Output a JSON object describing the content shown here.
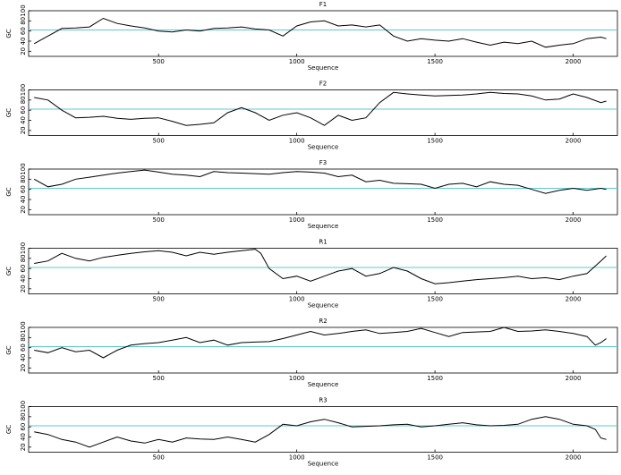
{
  "chart_data": [
    {
      "type": "line",
      "title": "F1",
      "x_label": "Sequence",
      "y_label": "GC",
      "color": "#000000",
      "reference": 62,
      "reference_color": "#5bc8d0",
      "x": [
        50,
        100,
        150,
        200,
        250,
        300,
        350,
        400,
        450,
        500,
        550,
        600,
        650,
        700,
        750,
        800,
        850,
        900,
        950,
        1000,
        1050,
        1100,
        1150,
        1200,
        1250,
        1300,
        1350,
        1400,
        1450,
        1500,
        1550,
        1600,
        1650,
        1700,
        1750,
        1800,
        1850,
        1900,
        1950,
        2000,
        2050,
        2100,
        2120
      ],
      "values": [
        35,
        50,
        65,
        66,
        68,
        85,
        75,
        70,
        66,
        60,
        58,
        62,
        60,
        65,
        66,
        68,
        64,
        62,
        50,
        70,
        78,
        80,
        70,
        72,
        68,
        72,
        50,
        40,
        45,
        42,
        40,
        45,
        38,
        32,
        38,
        35,
        40,
        28,
        32,
        35,
        45,
        48,
        45
      ],
      "xlim": [
        30,
        2160
      ],
      "ylim": [
        10,
        100
      ],
      "xticks": [
        500,
        1000,
        1500,
        2000
      ],
      "yticks": [
        20,
        40,
        60,
        80,
        100
      ]
    },
    {
      "type": "line",
      "title": "F2",
      "x_label": "Sequence",
      "y_label": "GC",
      "color": "#000000",
      "reference": 62,
      "reference_color": "#5bc8d0",
      "x": [
        50,
        100,
        150,
        200,
        250,
        300,
        350,
        400,
        450,
        500,
        550,
        600,
        650,
        700,
        750,
        800,
        850,
        900,
        950,
        1000,
        1050,
        1100,
        1150,
        1200,
        1250,
        1300,
        1350,
        1400,
        1450,
        1500,
        1550,
        1600,
        1650,
        1700,
        1750,
        1800,
        1850,
        1900,
        1950,
        2000,
        2050,
        2100,
        2120
      ],
      "values": [
        85,
        80,
        60,
        45,
        46,
        48,
        44,
        42,
        44,
        45,
        38,
        30,
        32,
        35,
        55,
        65,
        55,
        40,
        50,
        55,
        45,
        30,
        50,
        40,
        45,
        75,
        95,
        92,
        90,
        88,
        89,
        90,
        92,
        95,
        93,
        92,
        88,
        80,
        82,
        92,
        85,
        75,
        78
      ],
      "xlim": [
        30,
        2160
      ],
      "ylim": [
        10,
        100
      ],
      "xticks": [
        500,
        1000,
        1500,
        2000
      ],
      "yticks": [
        20,
        40,
        60,
        80,
        100
      ]
    },
    {
      "type": "line",
      "title": "F3",
      "x_label": "Sequence",
      "y_label": "GC",
      "color": "#000000",
      "reference": 62,
      "reference_color": "#5bc8d0",
      "x": [
        50,
        100,
        150,
        200,
        250,
        300,
        350,
        400,
        450,
        500,
        550,
        600,
        650,
        700,
        750,
        800,
        850,
        900,
        950,
        1000,
        1050,
        1100,
        1150,
        1200,
        1250,
        1300,
        1350,
        1400,
        1450,
        1500,
        1550,
        1600,
        1650,
        1700,
        1750,
        1800,
        1850,
        1900,
        1950,
        2000,
        2050,
        2100,
        2120
      ],
      "values": [
        80,
        65,
        70,
        80,
        84,
        88,
        92,
        95,
        98,
        94,
        90,
        88,
        85,
        95,
        93,
        92,
        91,
        90,
        93,
        95,
        94,
        92,
        85,
        88,
        75,
        78,
        72,
        71,
        70,
        62,
        70,
        72,
        65,
        75,
        70,
        68,
        60,
        52,
        58,
        62,
        58,
        62,
        60
      ],
      "xlim": [
        30,
        2160
      ],
      "ylim": [
        10,
        100
      ],
      "xticks": [
        500,
        1000,
        1500,
        2000
      ],
      "yticks": [
        20,
        40,
        60,
        80,
        100
      ]
    },
    {
      "type": "line",
      "title": "R1",
      "x_label": "Sequence",
      "y_label": "GC",
      "color": "#000000",
      "reference": 62,
      "reference_color": "#5bc8d0",
      "x": [
        50,
        100,
        150,
        200,
        250,
        300,
        350,
        400,
        450,
        500,
        550,
        600,
        650,
        700,
        750,
        800,
        850,
        870,
        900,
        950,
        1000,
        1050,
        1100,
        1150,
        1200,
        1250,
        1300,
        1350,
        1400,
        1450,
        1500,
        1550,
        1600,
        1650,
        1700,
        1750,
        1800,
        1850,
        1900,
        1950,
        2000,
        2050,
        2100,
        2120
      ],
      "values": [
        70,
        75,
        90,
        80,
        75,
        82,
        86,
        90,
        93,
        95,
        92,
        85,
        92,
        88,
        92,
        95,
        98,
        90,
        60,
        40,
        45,
        35,
        45,
        55,
        60,
        45,
        50,
        62,
        55,
        40,
        30,
        32,
        35,
        38,
        40,
        42,
        45,
        40,
        42,
        38,
        45,
        50,
        75,
        85
      ],
      "xlim": [
        30,
        2160
      ],
      "ylim": [
        10,
        100
      ],
      "xticks": [
        500,
        1000,
        1500,
        2000
      ],
      "yticks": [
        20,
        40,
        60,
        80,
        100
      ]
    },
    {
      "type": "line",
      "title": "R2",
      "x_label": "Sequence",
      "y_label": "GC",
      "color": "#000000",
      "reference": 62,
      "reference_color": "#5bc8d0",
      "x": [
        50,
        100,
        150,
        200,
        250,
        300,
        350,
        400,
        450,
        500,
        550,
        600,
        650,
        700,
        750,
        800,
        850,
        900,
        950,
        1000,
        1050,
        1100,
        1150,
        1200,
        1250,
        1300,
        1350,
        1400,
        1450,
        1500,
        1550,
        1600,
        1650,
        1700,
        1750,
        1800,
        1850,
        1900,
        1950,
        2000,
        2050,
        2080,
        2100,
        2120
      ],
      "values": [
        55,
        50,
        60,
        52,
        55,
        40,
        55,
        65,
        68,
        70,
        75,
        80,
        70,
        75,
        65,
        70,
        71,
        72,
        78,
        85,
        92,
        85,
        88,
        92,
        95,
        88,
        90,
        92,
        98,
        90,
        82,
        90,
        91,
        92,
        100,
        92,
        93,
        95,
        92,
        88,
        82,
        65,
        70,
        78
      ],
      "xlim": [
        30,
        2160
      ],
      "ylim": [
        10,
        100
      ],
      "xticks": [
        500,
        1000,
        1500,
        2000
      ],
      "yticks": [
        20,
        40,
        60,
        80,
        100
      ]
    },
    {
      "type": "line",
      "title": "R3",
      "x_label": "Sequence",
      "y_label": "GC",
      "color": "#000000",
      "reference": 62,
      "reference_color": "#5bc8d0",
      "x": [
        50,
        100,
        150,
        200,
        250,
        300,
        350,
        400,
        450,
        500,
        550,
        600,
        650,
        700,
        750,
        800,
        850,
        900,
        950,
        1000,
        1050,
        1100,
        1150,
        1200,
        1250,
        1300,
        1350,
        1400,
        1450,
        1500,
        1550,
        1600,
        1650,
        1700,
        1750,
        1800,
        1850,
        1900,
        1950,
        2000,
        2050,
        2080,
        2100,
        2120
      ],
      "values": [
        50,
        45,
        35,
        30,
        20,
        30,
        40,
        32,
        28,
        35,
        30,
        38,
        36,
        35,
        40,
        35,
        30,
        45,
        65,
        62,
        70,
        75,
        68,
        60,
        61,
        62,
        64,
        65,
        60,
        62,
        65,
        68,
        64,
        62,
        63,
        65,
        75,
        80,
        75,
        65,
        62,
        55,
        38,
        35
      ],
      "xlim": [
        30,
        2160
      ],
      "ylim": [
        10,
        100
      ],
      "xticks": [
        500,
        1000,
        1500,
        2000
      ],
      "yticks": [
        20,
        40,
        60,
        80,
        100
      ]
    }
  ]
}
